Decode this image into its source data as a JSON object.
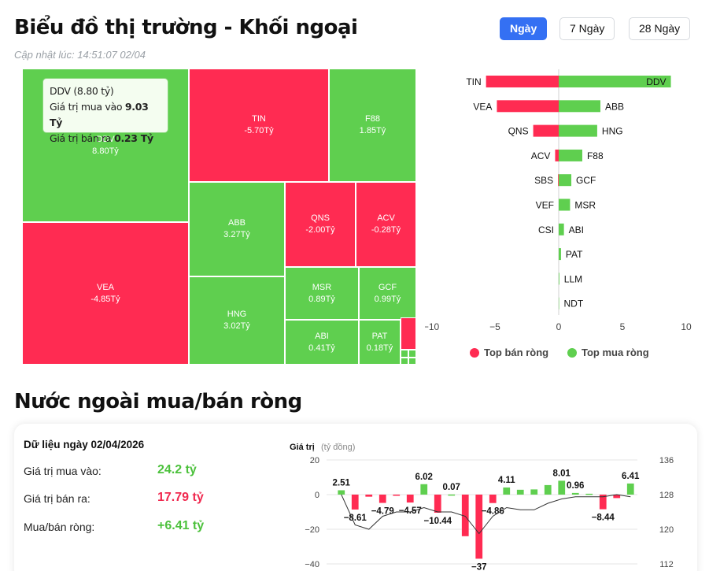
{
  "header": {
    "title": "Biểu đồ thị trường - Khối ngoại",
    "updated": "Cập nhật lúc: 14:51:07 02/04",
    "periods": [
      "Ngày",
      "7 Ngày",
      "28 Ngày"
    ],
    "active_period": "Ngày"
  },
  "colors": {
    "positive": "#5fcf4f",
    "negative": "#ff2b52",
    "accent": "#3470f3"
  },
  "tooltip": {
    "title": "DDV (8.80 tỷ)",
    "buy_label": "Giá trị mua vào",
    "buy_value": "9.03 Tỷ",
    "sell_label": "Giá trị bán ra",
    "sell_value": "0.23 Tỷ"
  },
  "treemap": [
    {
      "ticker": "DDV",
      "value": "8.80Tỷ",
      "sign": "pos"
    },
    {
      "ticker": "VEA",
      "value": "-4.85Tỷ",
      "sign": "neg"
    },
    {
      "ticker": "TIN",
      "value": "-5.70Tỷ",
      "sign": "neg"
    },
    {
      "ticker": "F88",
      "value": "1.85Tỷ",
      "sign": "pos"
    },
    {
      "ticker": "ABB",
      "value": "3.27Tỷ",
      "sign": "pos"
    },
    {
      "ticker": "HNG",
      "value": "3.02Tỷ",
      "sign": "pos"
    },
    {
      "ticker": "QNS",
      "value": "-2.00Tỷ",
      "sign": "neg"
    },
    {
      "ticker": "ACV",
      "value": "-0.28Tỷ",
      "sign": "neg"
    },
    {
      "ticker": "MSR",
      "value": "0.89Tỷ",
      "sign": "pos"
    },
    {
      "ticker": "GCF",
      "value": "0.99Tỷ",
      "sign": "pos"
    },
    {
      "ticker": "ABI",
      "value": "0.41Tỷ",
      "sign": "pos"
    },
    {
      "ticker": "PAT",
      "value": "0.18Tỷ",
      "sign": "pos"
    },
    {
      "ticker": "",
      "value": "",
      "sign": "neg"
    },
    {
      "ticker": "",
      "value": "",
      "sign": "pos"
    },
    {
      "ticker": "",
      "value": "",
      "sign": "pos"
    },
    {
      "ticker": "",
      "value": "",
      "sign": "pos"
    },
    {
      "ticker": "",
      "value": "",
      "sign": "pos"
    }
  ],
  "legend": {
    "sell": "Top bán ròng",
    "buy": "Top mua ròng"
  },
  "section2": {
    "title": "Nước ngoài mua/bán ròng",
    "date_label": "Dữ liệu ngày 02/04/2026",
    "buy_label": "Giá trị mua vào:",
    "buy_value": "24.2 tỷ",
    "sell_label": "Giá trị bán ra:",
    "sell_value": "17.79 tỷ",
    "net_label": "Mua/bán ròng:",
    "net_value": "+6.41 tỷ"
  },
  "chart_data": [
    {
      "type": "bar",
      "orientation": "horizontal",
      "sell_series": {
        "name": "Top bán ròng",
        "categories": [
          "TIN",
          "VEA",
          "QNS",
          "ACV",
          "SBS",
          "VEF",
          "CSI",
          "",
          "",
          ""
        ],
        "values": [
          -5.7,
          -4.85,
          -2.0,
          -0.28,
          -0.05,
          0,
          0,
          0,
          0,
          0
        ]
      },
      "buy_series": {
        "name": "Top mua ròng",
        "categories": [
          "DDV",
          "ABB",
          "HNG",
          "F88",
          "GCF",
          "MSR",
          "ABI",
          "PAT",
          "LLM",
          "NDT"
        ],
        "values": [
          8.8,
          3.27,
          3.02,
          1.85,
          0.99,
          0.89,
          0.41,
          0.18,
          0.05,
          0.03
        ]
      },
      "xticks": [
        -10,
        -5,
        0,
        5,
        10
      ],
      "xlim": [
        -10,
        10
      ]
    },
    {
      "type": "bar",
      "ylabel": "Giá trị",
      "ylabel_unit": "(tỷ đồng)",
      "y_ticks": [
        20,
        0,
        -20,
        -40
      ],
      "ylim": [
        -40,
        20
      ],
      "y2_ticks": [
        136,
        128,
        120,
        112
      ],
      "y2lim": [
        112,
        136
      ],
      "values": [
        2.51,
        -8.61,
        -1.2,
        -4.79,
        -0.6,
        -4.57,
        6.02,
        -10.44,
        0.07,
        -24,
        -37,
        -4.86,
        4.11,
        2.8,
        3.0,
        5.5,
        8.01,
        0.96,
        0.5,
        -8.44,
        -2.0,
        6.41
      ],
      "data_labels": [
        "2.51",
        "-8.61",
        "",
        "-4.79",
        "",
        "-4.57",
        "6.02",
        "-10.44",
        "0.07",
        "",
        "-37",
        "-4.86",
        "4.11",
        "",
        "",
        "",
        "8.01",
        "0.96",
        "",
        "-8.44",
        "",
        "6.41"
      ],
      "line_values": [
        128,
        121,
        120,
        123,
        124,
        124,
        125,
        124,
        124,
        123,
        119,
        123,
        125,
        124.5,
        124.5,
        126,
        127,
        127.5,
        127.5,
        127.5,
        128,
        127.5
      ]
    }
  ]
}
